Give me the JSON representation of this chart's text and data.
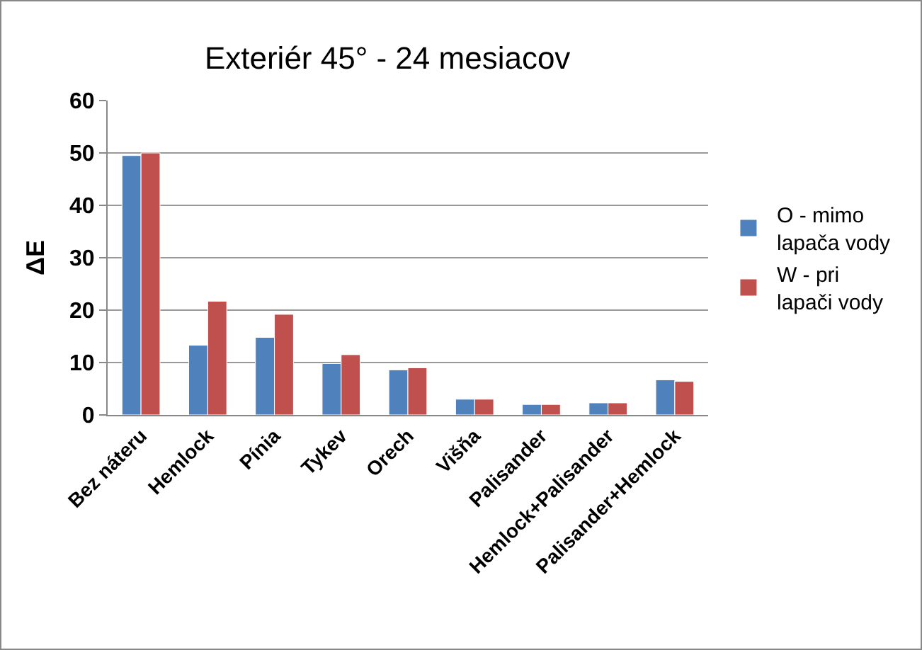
{
  "chart_data": {
    "type": "bar",
    "title": "Exteriér 45° - 24 mesiacov",
    "ylabel": "ΔE",
    "categories": [
      "Bez náteru",
      "Hemlock",
      "Pínia",
      "Tykev",
      "Orech",
      "Višňa",
      "Palisander",
      "Hemlock+Palisander",
      "Palisander+Hemlock"
    ],
    "series": [
      {
        "name": "O - mimo lapača vody",
        "color": "#4f81bd",
        "values": [
          49.5,
          13.3,
          14.8,
          9.8,
          8.6,
          3.0,
          2.0,
          2.3,
          6.7
        ]
      },
      {
        "name": "W - pri lapači vody",
        "color": "#c0504d",
        "values": [
          50.0,
          21.7,
          19.2,
          11.5,
          9.0,
          3.0,
          2.0,
          2.3,
          6.4
        ]
      }
    ],
    "ylim": [
      0,
      60
    ],
    "yticks": [
      0,
      10,
      20,
      30,
      40,
      50,
      60
    ],
    "grid": "y",
    "legend": "right"
  }
}
